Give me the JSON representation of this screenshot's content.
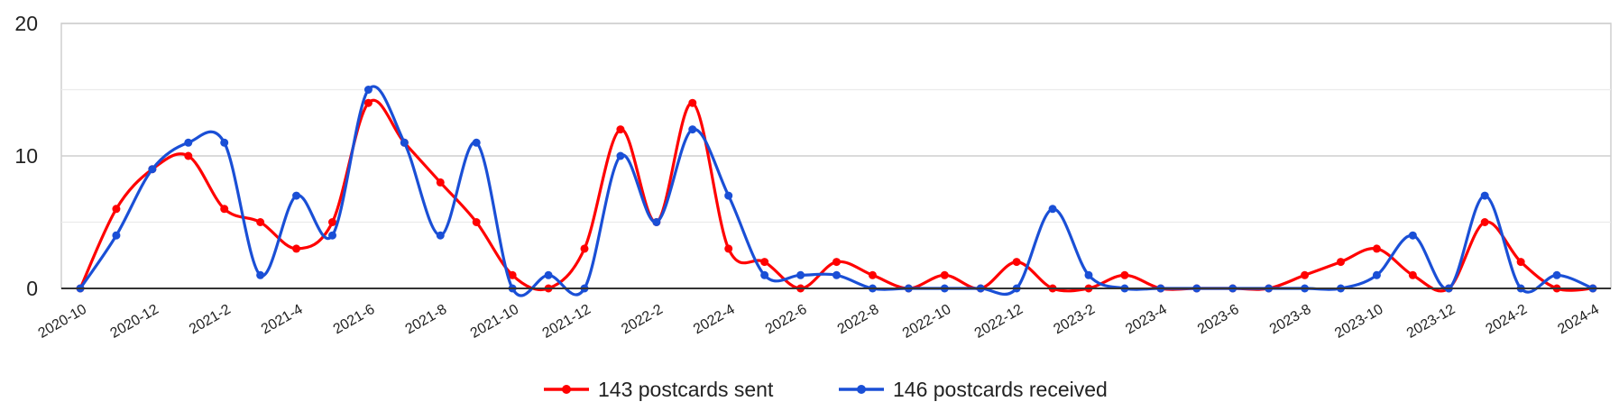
{
  "chart_data": {
    "type": "line",
    "title": "",
    "xlabel": "",
    "ylabel": "",
    "ylim": [
      0,
      20
    ],
    "yticks": [
      "0",
      "10",
      "20"
    ],
    "grid": true,
    "legend_position": "bottom-center",
    "curve": "smooth",
    "categories": [
      "2020-10",
      "2020-11",
      "2020-12",
      "2021-1",
      "2021-2",
      "2021-3",
      "2021-4",
      "2021-5",
      "2021-6",
      "2021-7",
      "2021-8",
      "2021-9",
      "2021-10",
      "2021-11",
      "2021-12",
      "2022-1",
      "2022-2",
      "2022-3",
      "2022-4",
      "2022-5",
      "2022-6",
      "2022-7",
      "2022-8",
      "2022-9",
      "2022-10",
      "2022-11",
      "2022-12",
      "2023-1",
      "2023-2",
      "2023-3",
      "2023-4",
      "2023-5",
      "2023-6",
      "2023-7",
      "2023-8",
      "2023-9",
      "2023-10",
      "2023-11",
      "2023-12",
      "2024-1",
      "2024-2",
      "2024-3",
      "2024-4"
    ],
    "x_tick_labels": [
      "2020-10",
      "2020-12",
      "2021-2",
      "2021-4",
      "2021-6",
      "2021-8",
      "2021-10",
      "2021-12",
      "2022-2",
      "2022-4",
      "2022-6",
      "2022-8",
      "2022-10",
      "2022-12",
      "2023-2",
      "2023-4",
      "2023-6",
      "2023-8",
      "2023-10",
      "2023-12",
      "2024-2",
      "2024-4"
    ],
    "series": [
      {
        "name": "143 postcards sent",
        "color": "#ff0000",
        "values": [
          0,
          6,
          9,
          10,
          6,
          5,
          3,
          5,
          14,
          11,
          8,
          5,
          1,
          0,
          3,
          12,
          5,
          14,
          3,
          2,
          0,
          2,
          1,
          0,
          1,
          0,
          2,
          0,
          0,
          1,
          0,
          0,
          0,
          0,
          1,
          2,
          3,
          1,
          0,
          5,
          2,
          0,
          0
        ]
      },
      {
        "name": "146 postcards received",
        "color": "#1a4fd6",
        "values": [
          0,
          4,
          9,
          11,
          11,
          1,
          7,
          4,
          15,
          11,
          4,
          11,
          0,
          1,
          0,
          10,
          5,
          12,
          7,
          1,
          1,
          1,
          0,
          0,
          0,
          0,
          0,
          6,
          1,
          0,
          0,
          0,
          0,
          0,
          0,
          0,
          1,
          4,
          0,
          7,
          0,
          1,
          0
        ]
      }
    ]
  }
}
